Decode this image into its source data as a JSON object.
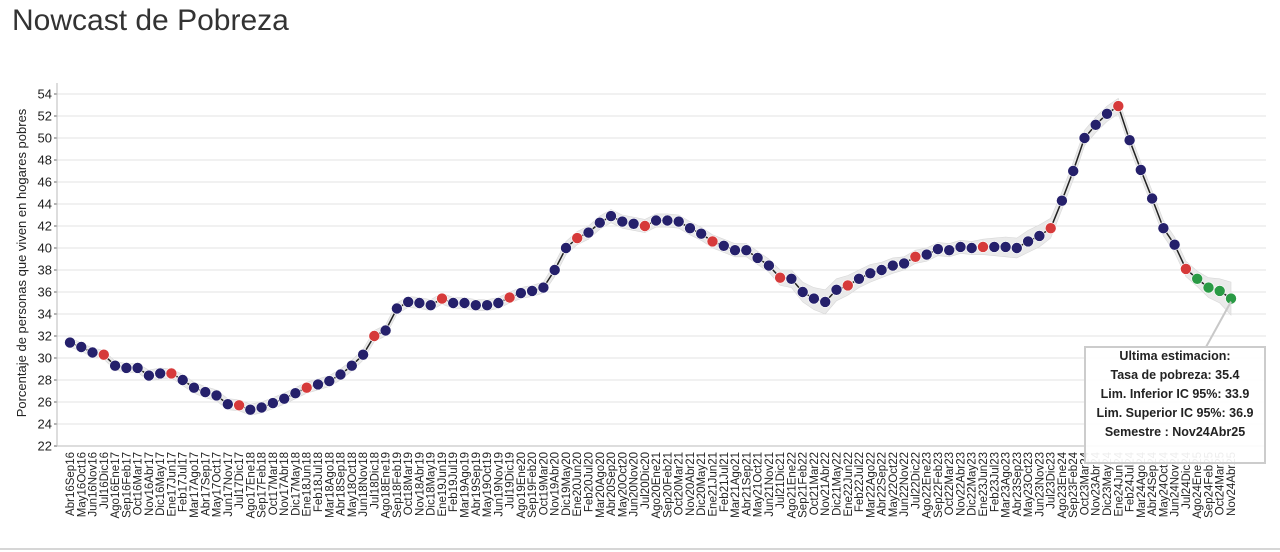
{
  "page": {
    "title": "Nowcast de Pobreza"
  },
  "chart_data": {
    "type": "line",
    "title": "Nowcast de Pobreza",
    "xlabel": "",
    "ylabel": "Porcentaje de personas que viven en hogares pobres",
    "ylim": [
      22,
      55
    ],
    "yticks": [
      22,
      24,
      26,
      28,
      30,
      32,
      34,
      36,
      38,
      40,
      42,
      44,
      46,
      48,
      50,
      52,
      54
    ],
    "grid": true,
    "colors": {
      "estimate": "#25206b",
      "official": "#d63a3a",
      "forecast": "#2a9a45",
      "line": "#222222",
      "band": "#e6e6e6"
    },
    "legend_note": "Marker colors: navy = nowcast, red = official semester, green = latest estimates",
    "categories": [
      "Abr16Sep16",
      "May16Oct16",
      "Jun16Nov16",
      "Jul16Dic16",
      "Ago16Ene17",
      "Sep16Feb17",
      "Oct16Mar17",
      "Nov16Abr17",
      "Dic16May17",
      "Ene17Jun17",
      "Feb17Jul17",
      "Mar17Ago17",
      "Abr17Sep17",
      "May17Oct17",
      "Jun17Nov17",
      "Jul17Dic17",
      "Ago17Ene18",
      "Sep17Feb18",
      "Oct17Mar18",
      "Nov17Abr18",
      "Dic17May18",
      "Ene18Jun18",
      "Feb18Jul18",
      "Mar18Ago18",
      "Abr18Sep18",
      "May18Oct18",
      "Jun18Nov18",
      "Jul18Dic18",
      "Ago18Ene19",
      "Sep18Feb19",
      "Oct18Mar19",
      "Nov18Abr19",
      "Dic18May19",
      "Ene19Jun19",
      "Feb19Jul19",
      "Mar19Ago19",
      "Abr19Sep19",
      "May19Oct19",
      "Jun19Nov19",
      "Jul19Dic19",
      "Ago19Ene20",
      "Sep19Feb20",
      "Oct19Mar20",
      "Nov19Abr20",
      "Dic19May20",
      "Ene20Jun20",
      "Feb20Jul20",
      "Mar20Ago20",
      "Abr20Sep20",
      "May20Oct20",
      "Jun20Nov20",
      "Jul20Dic20",
      "Ago20Ene21",
      "Sep20Feb21",
      "Oct20Mar21",
      "Nov20Abr21",
      "Dic20May21",
      "Ene21Jun21",
      "Feb21Jul21",
      "Mar21Ago21",
      "Abr21Sep21",
      "May21Oct21",
      "Jun21Nov21",
      "Jul21Dic21",
      "Ago21Ene22",
      "Sep21Feb22",
      "Oct21Mar22",
      "Nov21Abr22",
      "Dic21May22",
      "Ene22Jun22",
      "Feb22Jul22",
      "Mar22Ago22",
      "Abr22Sep22",
      "May22Oct22",
      "Jun22Nov22",
      "Jul22Dic22",
      "Ago22Ene23",
      "Sep22Feb23",
      "Oct22Mar23",
      "Nov22Abr23",
      "Dic22May23",
      "Ene23Jun23",
      "Feb23Jul23",
      "Mar23Ago23",
      "Abr23Sep23",
      "May23Oct23",
      "Jun23Nov23",
      "Jul23Dic23",
      "Ago23Ene24",
      "Sep23Feb24",
      "Oct23Mar24",
      "Nov23Abr24",
      "Dic23May24",
      "Ene24Jun24",
      "Feb24Jul24",
      "Mar24Ago24",
      "Abr24Sep24",
      "May24Oct24",
      "Jun24Nov24",
      "Jul24Dic24",
      "Ago24Ene25",
      "Sep24Feb25",
      "Oct24Mar25",
      "Nov24Abr25"
    ],
    "series": [
      {
        "values": [
          31.4,
          31.0,
          30.5,
          30.3,
          29.3,
          29.1,
          29.1,
          28.4,
          28.6,
          28.6,
          28.0,
          27.3,
          26.9,
          26.6,
          25.8,
          25.7,
          25.3,
          25.5,
          25.9,
          26.3,
          26.8,
          27.3,
          27.6,
          27.9,
          28.5,
          29.3,
          30.3,
          32.0,
          32.5,
          34.5,
          35.1,
          35.0,
          34.8,
          35.4,
          35.0,
          35.0,
          34.8,
          34.8,
          35.0,
          35.5,
          35.9,
          36.1,
          36.4,
          38.0,
          40.0,
          40.9,
          41.4,
          42.3,
          42.9,
          42.4,
          42.2,
          42.0,
          42.5,
          42.5,
          42.4,
          41.8,
          41.3,
          40.6,
          40.2,
          39.8,
          39.8,
          39.1,
          38.4,
          37.3,
          37.2,
          36.0,
          35.4,
          35.1,
          36.2,
          36.6,
          37.2,
          37.7,
          38.0,
          38.4,
          38.6,
          39.2,
          39.4,
          39.9,
          39.8,
          40.1,
          40.0,
          40.1,
          40.1,
          40.1,
          40.0,
          40.6,
          41.1,
          41.8,
          44.3,
          47.0,
          50.0,
          51.2,
          52.2,
          52.9,
          49.8,
          47.1,
          44.5,
          41.8,
          40.3,
          38.1,
          37.2,
          36.4,
          36.1,
          35.4
        ],
        "marker_types": [
          "n",
          "n",
          "n",
          "o",
          "n",
          "n",
          "n",
          "n",
          "n",
          "o",
          "n",
          "n",
          "n",
          "n",
          "n",
          "o",
          "n",
          "n",
          "n",
          "n",
          "n",
          "o",
          "n",
          "n",
          "n",
          "n",
          "n",
          "o",
          "n",
          "n",
          "n",
          "n",
          "n",
          "o",
          "n",
          "n",
          "n",
          "n",
          "n",
          "o",
          "n",
          "n",
          "n",
          "n",
          "n",
          "o",
          "n",
          "n",
          "n",
          "n",
          "n",
          "o",
          "n",
          "n",
          "n",
          "n",
          "n",
          "o",
          "n",
          "n",
          "n",
          "n",
          "n",
          "o",
          "n",
          "n",
          "n",
          "n",
          "n",
          "o",
          "n",
          "n",
          "n",
          "n",
          "n",
          "o",
          "n",
          "n",
          "n",
          "n",
          "n",
          "o",
          "n",
          "n",
          "n",
          "n",
          "n",
          "o",
          "n",
          "n",
          "n",
          "n",
          "n",
          "o",
          "n",
          "n",
          "n",
          "n",
          "n",
          "o",
          "f",
          "f",
          "f",
          "f"
        ],
        "lower": [
          31.0,
          30.6,
          30.1,
          29.9,
          28.9,
          28.7,
          28.7,
          27.9,
          28.1,
          28.2,
          27.5,
          26.8,
          26.4,
          26.1,
          25.3,
          25.2,
          24.8,
          25.0,
          25.4,
          25.8,
          26.3,
          26.8,
          27.1,
          27.4,
          28.0,
          28.8,
          29.8,
          31.5,
          32.0,
          34.0,
          34.6,
          34.5,
          34.3,
          34.9,
          34.5,
          34.5,
          34.3,
          34.3,
          34.5,
          35.0,
          35.4,
          35.6,
          35.9,
          37.4,
          39.4,
          40.3,
          40.8,
          41.7,
          42.3,
          41.8,
          41.6,
          41.4,
          41.9,
          41.9,
          41.8,
          41.2,
          40.7,
          40.0,
          39.6,
          39.2,
          39.2,
          38.5,
          37.8,
          36.6,
          36.4,
          35.1,
          34.4,
          34.0,
          35.2,
          35.7,
          36.4,
          36.9,
          37.3,
          37.7,
          38.0,
          38.6,
          38.8,
          39.3,
          39.2,
          39.5,
          39.4,
          39.4,
          39.3,
          39.2,
          39.1,
          39.6,
          40.1,
          40.9,
          43.5,
          46.2,
          49.3,
          50.5,
          51.5,
          52.2,
          49.1,
          46.4,
          43.8,
          41.1,
          39.6,
          37.4,
          36.5,
          35.5,
          35.0,
          33.9
        ],
        "upper": [
          31.8,
          31.4,
          30.9,
          30.7,
          29.7,
          29.5,
          29.5,
          28.9,
          29.1,
          29.0,
          28.5,
          27.8,
          27.4,
          27.1,
          26.3,
          26.2,
          25.8,
          26.0,
          26.4,
          26.8,
          27.3,
          27.8,
          28.1,
          28.4,
          29.0,
          29.8,
          30.8,
          32.5,
          33.0,
          35.0,
          35.6,
          35.5,
          35.3,
          35.9,
          35.5,
          35.5,
          35.3,
          35.3,
          35.5,
          36.0,
          36.4,
          36.6,
          36.9,
          38.6,
          40.6,
          41.5,
          42.0,
          42.9,
          43.5,
          43.0,
          42.8,
          42.6,
          43.1,
          43.1,
          43.0,
          42.4,
          41.9,
          41.2,
          40.8,
          40.4,
          40.4,
          39.7,
          39.0,
          38.0,
          38.0,
          36.9,
          36.4,
          36.2,
          37.2,
          37.5,
          38.0,
          38.5,
          38.7,
          39.1,
          39.2,
          39.8,
          40.0,
          40.5,
          40.4,
          40.7,
          40.6,
          40.8,
          40.9,
          41.0,
          40.9,
          41.6,
          42.1,
          42.7,
          45.1,
          47.8,
          50.7,
          51.9,
          52.9,
          53.6,
          50.5,
          47.8,
          45.2,
          42.5,
          41.0,
          38.8,
          37.9,
          37.3,
          37.2,
          36.9
        ]
      }
    ],
    "tooltip": {
      "title": "Ultima estimacion:",
      "rows": [
        {
          "label": "Tasa de pobreza:",
          "value": "35.4"
        },
        {
          "label": "Lim. Inferior IC 95%:",
          "value": "33.9"
        },
        {
          "label": "Lim. Superior IC 95%:",
          "value": "36.9"
        },
        {
          "label": "Semestre :",
          "value": "Nov24Abr25"
        }
      ]
    }
  }
}
